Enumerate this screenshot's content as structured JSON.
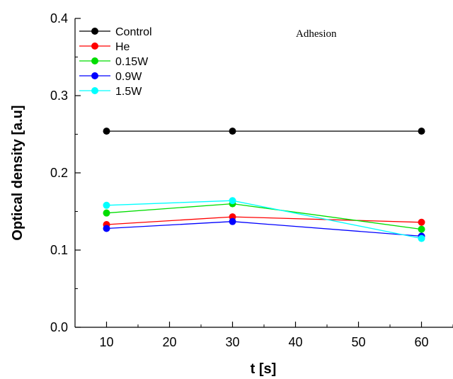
{
  "chart_data": {
    "type": "line",
    "title": "",
    "annotation": "Adhesion",
    "xlabel": "t [s]",
    "ylabel": "Optical density [a.u]",
    "xlim": [
      5,
      65
    ],
    "ylim": [
      0,
      0.4
    ],
    "xticks": [
      10,
      20,
      30,
      40,
      50,
      60
    ],
    "yticks": [
      0.0,
      0.1,
      0.2,
      0.3,
      0.4
    ],
    "xtick_labels": [
      "10",
      "20",
      "30",
      "40",
      "50",
      "60"
    ],
    "ytick_labels": [
      "0.0",
      "0.1",
      "0.2",
      "0.3",
      "0.4"
    ],
    "legend_position": "top-left",
    "grid": false,
    "x": [
      10,
      30,
      60
    ],
    "series": [
      {
        "name": "Control",
        "color": "#000000",
        "values": [
          0.254,
          0.254,
          0.254
        ]
      },
      {
        "name": "He",
        "color": "#ff0000",
        "values": [
          0.133,
          0.143,
          0.136
        ]
      },
      {
        "name": "0.15W",
        "color": "#00dd00",
        "values": [
          0.148,
          0.16,
          0.127
        ]
      },
      {
        "name": "0.9W",
        "color": "#0000ff",
        "values": [
          0.128,
          0.137,
          0.118
        ]
      },
      {
        "name": "1.5W",
        "color": "#00ffff",
        "values": [
          0.158,
          0.164,
          0.115
        ]
      }
    ]
  }
}
